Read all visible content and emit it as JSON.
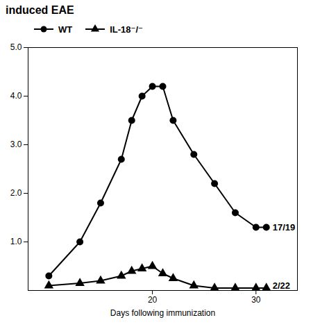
{
  "chart_data": {
    "type": "line",
    "title": "induced EAE",
    "x_label": "Days following immunization",
    "x": [
      10,
      13,
      15,
      17,
      18,
      19,
      20,
      21,
      22,
      24,
      26,
      28,
      30,
      31
    ],
    "series": [
      {
        "name": "WT",
        "color": "#000000",
        "marker": "circle",
        "values": [
          0.3,
          1.0,
          1.8,
          2.7,
          3.5,
          4.0,
          4.2,
          4.2,
          3.5,
          2.8,
          2.2,
          1.6,
          1.3,
          1.3
        ]
      },
      {
        "name": "IL-18⁻/⁻",
        "color": "#000000",
        "marker": "triangle",
        "values": [
          0.1,
          0.15,
          0.2,
          0.3,
          0.4,
          0.45,
          0.5,
          0.35,
          0.25,
          0.1,
          0.05,
          0.05,
          0.05,
          0.05
        ]
      }
    ],
    "annotations": [
      {
        "text": "17/19",
        "x": 31,
        "y": 1.3
      },
      {
        "text": "2/22",
        "x": 31,
        "y": 0.1
      }
    ],
    "xlim": [
      8,
      34
    ],
    "xticks": [
      20,
      30
    ],
    "ylim": [
      0,
      5
    ],
    "yticks": [
      1,
      2,
      3,
      4,
      5
    ],
    "grid": false
  }
}
